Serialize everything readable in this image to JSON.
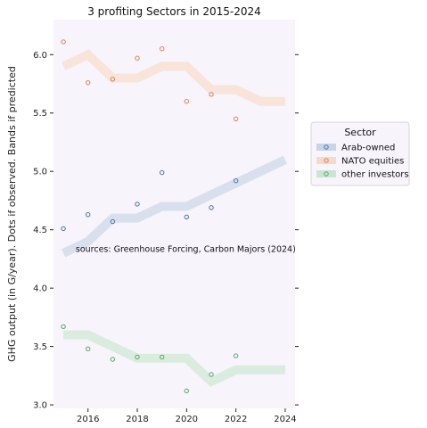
{
  "chart_data": {
    "type": "line",
    "title": "3 profiting Sectors in 2015-2024",
    "xlabel": "",
    "ylabel": "GHG output (in G/year). Dots if observed. Bands if predicted",
    "xlim": [
      2014.6,
      2024.4
    ],
    "ylim": [
      2.97,
      6.3
    ],
    "x_ticks": [
      2016,
      2018,
      2020,
      2022,
      2024
    ],
    "y_ticks": [
      3.0,
      3.5,
      4.0,
      4.5,
      5.0,
      5.5,
      6.0
    ],
    "grid": false,
    "background": "#f7f4fb",
    "legend": {
      "title": "Sector",
      "position": "right"
    },
    "annotation": "sources: Greenhouse Forcing, Carbon Majors (2024)",
    "series": [
      {
        "name": "Arab-owned",
        "color": "#4c72b0",
        "band": {
          "x": [
            2015,
            2016,
            2017,
            2018,
            2019,
            2020,
            2021,
            2022,
            2023,
            2024
          ],
          "y": [
            4.3,
            4.4,
            4.6,
            4.6,
            4.7,
            4.7,
            4.8,
            4.9,
            5.0,
            5.1
          ]
        },
        "points": {
          "x": [
            2015,
            2016,
            2017,
            2018,
            2019,
            2020,
            2021,
            2022
          ],
          "y": [
            4.51,
            4.63,
            4.57,
            4.72,
            4.99,
            4.61,
            4.69,
            4.92
          ]
        }
      },
      {
        "name": "NATO equities",
        "color": "#dd8452",
        "band": {
          "x": [
            2015,
            2016,
            2017,
            2018,
            2019,
            2020,
            2021,
            2022,
            2023,
            2024
          ],
          "y": [
            5.9,
            6.0,
            5.8,
            5.8,
            5.9,
            5.9,
            5.7,
            5.7,
            5.6,
            5.6
          ]
        },
        "points": {
          "x": [
            2015,
            2016,
            2017,
            2018,
            2019,
            2020,
            2021,
            2022
          ],
          "y": [
            6.11,
            5.76,
            5.79,
            5.97,
            6.05,
            5.6,
            5.66,
            5.45
          ]
        }
      },
      {
        "name": "other investors",
        "color": "#55a868",
        "band": {
          "x": [
            2015,
            2016,
            2017,
            2018,
            2019,
            2020,
            2021,
            2022,
            2023,
            2024
          ],
          "y": [
            3.6,
            3.6,
            3.5,
            3.4,
            3.4,
            3.4,
            3.2,
            3.3,
            3.3,
            3.3
          ]
        },
        "points": {
          "x": [
            2015,
            2016,
            2017,
            2018,
            2019,
            2020,
            2021,
            2022
          ],
          "y": [
            3.67,
            3.48,
            3.39,
            3.41,
            3.41,
            3.12,
            3.26,
            3.42
          ]
        }
      }
    ]
  }
}
